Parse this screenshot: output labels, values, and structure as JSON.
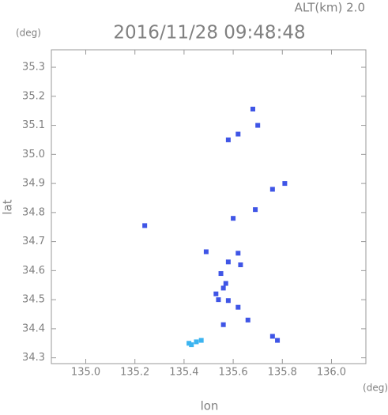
{
  "chart_data": {
    "type": "scatter",
    "title": "2016/11/28 09:48:48",
    "altitude_label": "ALT(km) 2.0",
    "y_unit": "(deg)",
    "x_unit": "(deg)",
    "xlabel": "lon",
    "ylabel": "lat",
    "xlim": [
      134.86,
      136.14
    ],
    "ylim": [
      34.28,
      35.36
    ],
    "xticks": [
      {
        "value": 135,
        "label": "135.0"
      },
      135.2,
      135.4,
      135.6,
      135.8,
      {
        "value": 136,
        "label": "136.0"
      }
    ],
    "yticks": [
      34.3,
      34.4,
      34.5,
      34.6,
      34.7,
      34.8,
      34.9,
      {
        "value": 35,
        "label": "35.0"
      },
      35.1,
      35.2,
      35.3
    ],
    "series": [
      {
        "color": "#3f55e6",
        "x": [
          135.68,
          135.7,
          135.58,
          135.62,
          135.76,
          135.81,
          135.24,
          135.69,
          135.6,
          135.49,
          135.58,
          135.62,
          135.55,
          135.57,
          135.54,
          135.58,
          135.62,
          135.56,
          135.66,
          135.78,
          135.76,
          135.63,
          135.53,
          135.56
        ],
        "values": [
          35.156,
          35.1,
          35.05,
          35.07,
          34.88,
          34.9,
          34.755,
          34.81,
          34.78,
          34.665,
          34.63,
          34.66,
          34.59,
          34.556,
          34.5,
          34.497,
          34.474,
          34.414,
          34.43,
          34.36,
          34.374,
          34.62,
          34.52,
          34.54
        ]
      },
      {
        "color": "#3cb4f0",
        "x": [
          135.42,
          135.45,
          135.47,
          135.43
        ],
        "values": [
          34.35,
          34.355,
          34.36,
          34.345
        ]
      }
    ]
  }
}
